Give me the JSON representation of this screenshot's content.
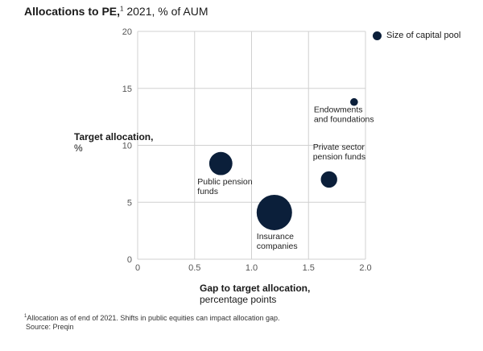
{
  "title": {
    "bold": "Allocations to PE,",
    "footnote_mark": "1",
    "rest": " 2021, % of AUM"
  },
  "footnote": {
    "mark": "1",
    "text": "Allocation as of end of 2021. Shifts in public equities can impact allocation gap.",
    "source": "Source: Preqin"
  },
  "colors": {
    "bubble": "#0b1f3a",
    "grid": "#d0d0d0",
    "axis_text": "#555555"
  },
  "chart_data": {
    "type": "scatter",
    "subtype": "bubble",
    "xlabel_bold": "Gap to target allocation,",
    "xlabel_rest": "percentage points",
    "ylabel_bold": "Target allocation,",
    "ylabel_rest": "%",
    "xlim": [
      0,
      2.0
    ],
    "ylim": [
      0,
      20
    ],
    "x_ticks": [
      "0",
      "0.5",
      "1.0",
      "1.5",
      "2.0"
    ],
    "y_ticks": [
      "0",
      "5",
      "10",
      "15",
      "20"
    ],
    "grid": true,
    "legend": {
      "label": "Size of capital pool",
      "placement": "top-right"
    },
    "points": [
      {
        "name": "Endowments and foundations",
        "label_lines": [
          "Endowments",
          "and foundations"
        ],
        "x": 1.9,
        "y": 13.8,
        "size": 1
      },
      {
        "name": "Private sector pension funds",
        "label_lines": [
          "Private sector",
          "pension funds"
        ],
        "x": 1.68,
        "y": 7.0,
        "size": 4.5
      },
      {
        "name": "Public pension funds",
        "label_lines": [
          "Public pension",
          "funds"
        ],
        "x": 0.73,
        "y": 8.4,
        "size": 9
      },
      {
        "name": "Insurance companies",
        "label_lines": [
          "Insurance",
          "companies"
        ],
        "x": 1.2,
        "y": 4.1,
        "size": 21
      }
    ]
  }
}
